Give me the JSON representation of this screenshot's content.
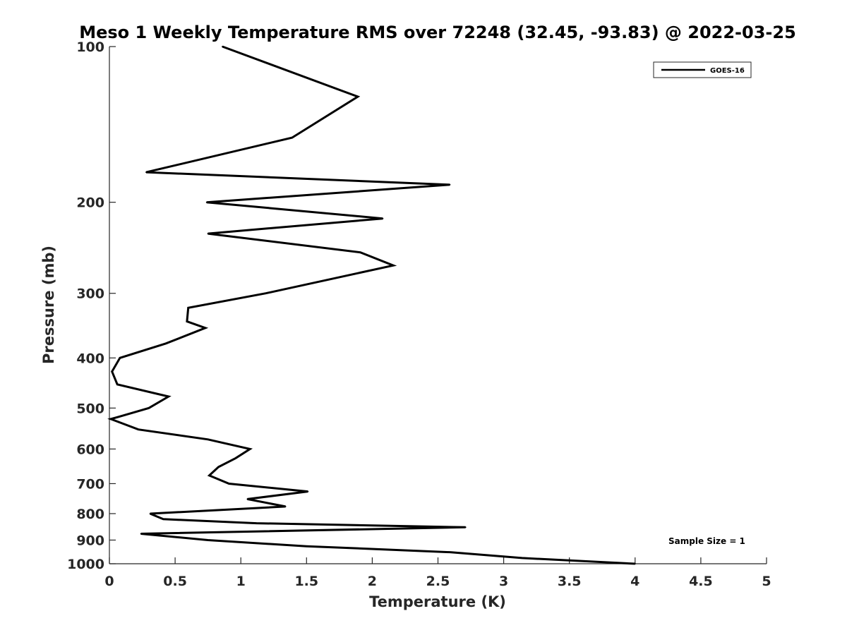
{
  "chart_data": {
    "type": "line",
    "title": "Meso 1 Weekly Temperature RMS over 72248 (32.45, -93.83) @ 2022-03-25",
    "xlabel": "Temperature (K)",
    "ylabel": "Pressure (mb)",
    "xlim": [
      0,
      5
    ],
    "ylim": [
      100,
      1000
    ],
    "y_scale": "log",
    "y_reversed": true,
    "grid": false,
    "x_ticks": [
      0,
      0.5,
      1,
      1.5,
      2,
      2.5,
      3,
      3.5,
      4,
      4.5,
      5
    ],
    "x_tick_labels": [
      "0",
      "0.5",
      "1",
      "1.5",
      "2",
      "2.5",
      "3",
      "3.5",
      "4",
      "4.5",
      "5"
    ],
    "y_ticks": [
      100,
      200,
      300,
      400,
      500,
      600,
      700,
      800,
      900,
      1000
    ],
    "y_tick_labels": [
      "100",
      "200",
      "300",
      "400",
      "500",
      "600",
      "700",
      "800",
      "900",
      "1000"
    ],
    "legend": {
      "position": "top-right",
      "entries": [
        "GOES-16"
      ]
    },
    "annotation": "Sample Size = 1",
    "series": [
      {
        "name": "GOES-16",
        "color": "#000000",
        "x": [
          0.86,
          1.89,
          1.39,
          0.28,
          2.59,
          0.74,
          2.08,
          0.75,
          1.91,
          2.16,
          1.19,
          0.6,
          0.59,
          0.73,
          0.43,
          0.08,
          0.02,
          0.06,
          0.45,
          0.3,
          0.07,
          0.01,
          0.22,
          0.75,
          1.07,
          0.96,
          0.83,
          0.76,
          0.91,
          1.51,
          1.05,
          1.34,
          0.31,
          0.41,
          1.12,
          2.71,
          0.24,
          0.75,
          1.5,
          2.6,
          3.14,
          4.0
        ],
        "y": [
          100,
          125,
          150,
          175,
          185,
          200,
          215,
          230,
          250,
          265,
          300,
          320,
          340,
          350,
          375,
          400,
          425,
          450,
          475,
          500,
          520,
          525,
          550,
          575,
          600,
          625,
          650,
          675,
          700,
          725,
          750,
          775,
          800,
          820,
          835,
          850,
          875,
          900,
          925,
          950,
          975,
          1000
        ]
      }
    ]
  }
}
